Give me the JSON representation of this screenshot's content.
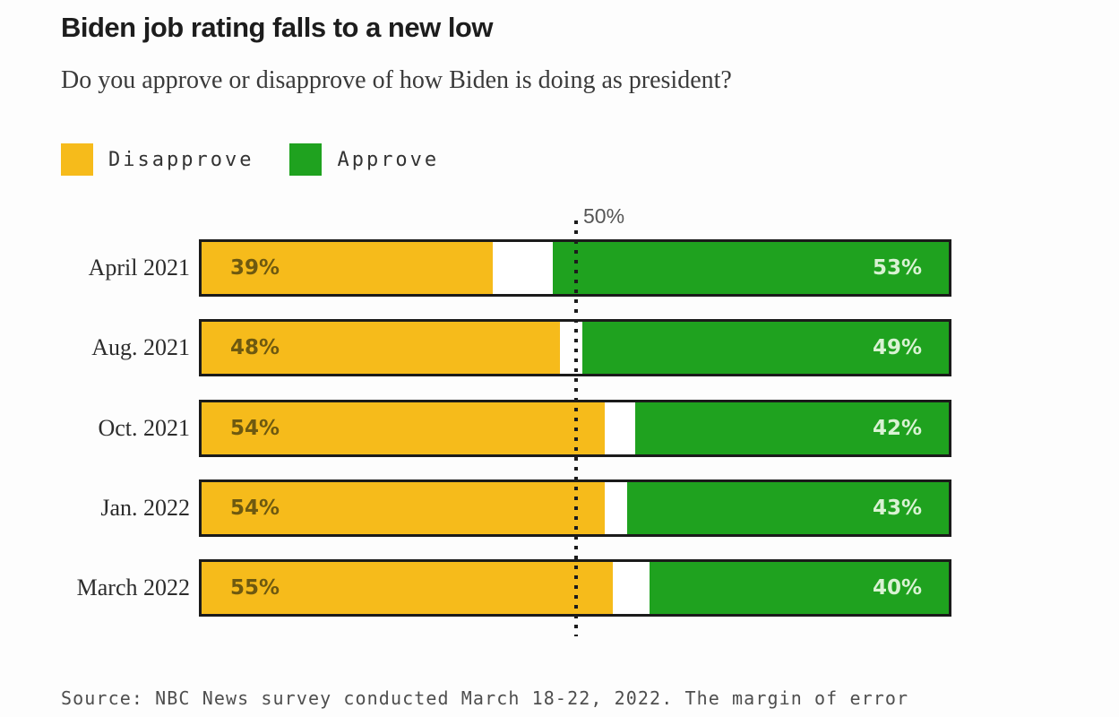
{
  "header": {
    "title": "Biden job rating falls to a new low",
    "subtitle": "Do you approve or disapprove of how Biden is doing as president?"
  },
  "legend": {
    "items": [
      {
        "label": "Disapprove",
        "color": "#F6BB1B"
      },
      {
        "label": "Approve",
        "color": "#1FA21F"
      }
    ]
  },
  "chart_data": {
    "type": "bar",
    "orientation": "horizontal",
    "stacked": true,
    "title": "Biden job rating falls to a new low",
    "subtitle": "Do you approve or disapprove of how Biden is doing as president?",
    "categories": [
      "April 2021",
      "Aug. 2021",
      "Oct. 2021",
      "Jan. 2022",
      "March 2022"
    ],
    "series": [
      {
        "name": "Disapprove",
        "color": "#F6BB1B",
        "align": "left",
        "values": [
          39,
          48,
          54,
          54,
          55
        ]
      },
      {
        "name": "Approve",
        "color": "#1FA21F",
        "align": "right",
        "values": [
          53,
          49,
          42,
          43,
          40
        ]
      }
    ],
    "value_suffix": "%",
    "xlim": [
      0,
      100
    ],
    "grid": "single-reference-line",
    "gridline": {
      "value": 50,
      "label": "50%"
    },
    "legend_position": "top-left"
  },
  "footer": {
    "source": "Source: NBC News survey conducted March 18-22, 2022. The margin of error"
  },
  "colors": {
    "disapprove_fill": "#F6BB1B",
    "approve_fill": "#1FA21F",
    "bar_border": "#1B1B1B",
    "disapprove_value_text": "#6E5910",
    "approve_value_text": "#D9F2D3",
    "gridline": "#1C1C1C",
    "title_text": "#1D1D1D",
    "subtitle_text": "#3A3A3A",
    "source_text": "#4E4E4E"
  }
}
